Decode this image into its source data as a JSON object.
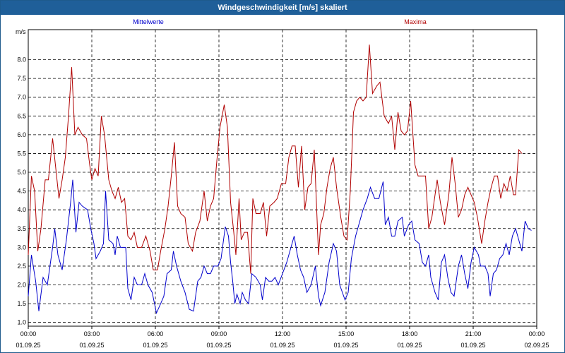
{
  "window": {
    "title": "Windgeschwindigkeit [m/s] skaliert"
  },
  "chart_data": {
    "type": "line",
    "title": "Windgeschwindigkeit [m/s] skaliert",
    "ylabel": "m/s",
    "xlabel": "",
    "ylim": [
      0.9,
      8.8
    ],
    "xlim": [
      0,
      24
    ],
    "grid": true,
    "y_ticks": [
      "1.0",
      "1.5",
      "2.0",
      "2.5",
      "3.0",
      "3.5",
      "4.0",
      "4.5",
      "5.0",
      "5.5",
      "6.0",
      "6.5",
      "7.0",
      "7.5",
      "8.0"
    ],
    "x_ticks": [
      {
        "time": "00:00",
        "date": "01.09.25"
      },
      {
        "time": "03:00",
        "date": "01.09.25"
      },
      {
        "time": "06:00",
        "date": "01.09.25"
      },
      {
        "time": "09:00",
        "date": "01.09.25"
      },
      {
        "time": "12:00",
        "date": "01.09.25"
      },
      {
        "time": "15:00",
        "date": "01.09.25"
      },
      {
        "time": "18:00",
        "date": "01.09.25"
      },
      {
        "time": "21:00",
        "date": "01.09.25"
      },
      {
        "time": "00:00",
        "date": "02.09.25"
      }
    ],
    "series": [
      {
        "name": "Mittelwerte",
        "color": "#0000cc",
        "points": [
          [
            0.0,
            1.7
          ],
          [
            0.15,
            2.8
          ],
          [
            0.35,
            2.1
          ],
          [
            0.5,
            1.3
          ],
          [
            0.7,
            2.2
          ],
          [
            0.9,
            2.0
          ],
          [
            1.15,
            3.0
          ],
          [
            1.25,
            3.5
          ],
          [
            1.4,
            2.8
          ],
          [
            1.6,
            2.4
          ],
          [
            1.8,
            3.2
          ],
          [
            2.0,
            4.2
          ],
          [
            2.1,
            4.8
          ],
          [
            2.25,
            3.4
          ],
          [
            2.4,
            4.2
          ],
          [
            2.55,
            4.1
          ],
          [
            2.8,
            4.0
          ],
          [
            2.95,
            3.5
          ],
          [
            3.1,
            3.1
          ],
          [
            3.2,
            2.7
          ],
          [
            3.4,
            2.9
          ],
          [
            3.55,
            3.1
          ],
          [
            3.65,
            4.5
          ],
          [
            3.8,
            3.2
          ],
          [
            4.0,
            3.1
          ],
          [
            4.1,
            2.8
          ],
          [
            4.2,
            3.3
          ],
          [
            4.35,
            3.0
          ],
          [
            4.6,
            3.0
          ],
          [
            4.7,
            1.9
          ],
          [
            4.85,
            1.6
          ],
          [
            5.0,
            2.2
          ],
          [
            5.15,
            2.0
          ],
          [
            5.35,
            2.0
          ],
          [
            5.5,
            2.3
          ],
          [
            5.65,
            2.0
          ],
          [
            5.85,
            1.8
          ],
          [
            6.05,
            1.25
          ],
          [
            6.25,
            1.5
          ],
          [
            6.4,
            1.7
          ],
          [
            6.55,
            2.3
          ],
          [
            6.75,
            2.4
          ],
          [
            6.85,
            2.9
          ],
          [
            7.0,
            2.5
          ],
          [
            7.2,
            2.1
          ],
          [
            7.4,
            1.8
          ],
          [
            7.6,
            1.35
          ],
          [
            7.8,
            1.3
          ],
          [
            8.0,
            2.1
          ],
          [
            8.15,
            2.2
          ],
          [
            8.3,
            2.5
          ],
          [
            8.45,
            2.3
          ],
          [
            8.6,
            2.3
          ],
          [
            8.75,
            2.5
          ],
          [
            8.95,
            2.5
          ],
          [
            9.1,
            2.7
          ],
          [
            9.3,
            3.55
          ],
          [
            9.45,
            3.3
          ],
          [
            9.55,
            2.6
          ],
          [
            9.65,
            2.1
          ],
          [
            9.75,
            1.5
          ],
          [
            9.85,
            1.75
          ],
          [
            10.0,
            1.5
          ],
          [
            10.1,
            1.8
          ],
          [
            10.25,
            1.6
          ],
          [
            10.4,
            1.5
          ],
          [
            10.55,
            2.3
          ],
          [
            10.75,
            2.2
          ],
          [
            10.95,
            2.0
          ],
          [
            11.05,
            1.6
          ],
          [
            11.2,
            2.2
          ],
          [
            11.35,
            2.1
          ],
          [
            11.5,
            2.1
          ],
          [
            11.65,
            2.2
          ],
          [
            11.8,
            2.0
          ],
          [
            12.0,
            2.3
          ],
          [
            12.2,
            2.6
          ],
          [
            12.4,
            3.0
          ],
          [
            12.55,
            3.3
          ],
          [
            12.7,
            2.8
          ],
          [
            12.85,
            2.4
          ],
          [
            13.0,
            2.2
          ],
          [
            13.15,
            1.8
          ],
          [
            13.35,
            2.0
          ],
          [
            13.55,
            2.5
          ],
          [
            13.7,
            1.7
          ],
          [
            13.8,
            1.45
          ],
          [
            14.0,
            1.8
          ],
          [
            14.2,
            2.6
          ],
          [
            14.4,
            3.1
          ],
          [
            14.55,
            2.9
          ],
          [
            14.7,
            2.0
          ],
          [
            14.95,
            1.6
          ],
          [
            15.1,
            1.8
          ],
          [
            15.25,
            2.7
          ],
          [
            15.45,
            3.3
          ],
          [
            15.6,
            3.6
          ],
          [
            15.8,
            4.0
          ],
          [
            16.0,
            4.3
          ],
          [
            16.15,
            4.6
          ],
          [
            16.35,
            4.3
          ],
          [
            16.55,
            4.3
          ],
          [
            16.75,
            4.75
          ],
          [
            16.85,
            3.6
          ],
          [
            17.0,
            3.8
          ],
          [
            17.15,
            3.3
          ],
          [
            17.3,
            3.3
          ],
          [
            17.45,
            3.7
          ],
          [
            17.65,
            3.8
          ],
          [
            17.75,
            3.3
          ],
          [
            17.95,
            3.6
          ],
          [
            18.1,
            3.7
          ],
          [
            18.25,
            3.2
          ],
          [
            18.45,
            3.1
          ],
          [
            18.6,
            2.6
          ],
          [
            18.75,
            2.5
          ],
          [
            18.9,
            2.8
          ],
          [
            19.0,
            2.2
          ],
          [
            19.2,
            1.8
          ],
          [
            19.35,
            1.6
          ],
          [
            19.5,
            2.6
          ],
          [
            19.65,
            2.8
          ],
          [
            19.8,
            2.2
          ],
          [
            19.95,
            1.8
          ],
          [
            20.1,
            1.7
          ],
          [
            20.3,
            2.5
          ],
          [
            20.45,
            2.8
          ],
          [
            20.6,
            2.3
          ],
          [
            20.75,
            1.9
          ],
          [
            20.9,
            2.6
          ],
          [
            21.05,
            3.0
          ],
          [
            21.25,
            2.8
          ],
          [
            21.35,
            2.5
          ],
          [
            21.55,
            2.5
          ],
          [
            21.7,
            2.3
          ],
          [
            21.8,
            1.7
          ],
          [
            21.95,
            2.3
          ],
          [
            22.1,
            2.4
          ],
          [
            22.25,
            2.7
          ],
          [
            22.4,
            2.8
          ],
          [
            22.55,
            3.1
          ],
          [
            22.7,
            2.8
          ],
          [
            22.85,
            3.3
          ],
          [
            23.0,
            3.5
          ],
          [
            23.15,
            3.2
          ],
          [
            23.3,
            2.9
          ],
          [
            23.45,
            3.7
          ],
          [
            23.6,
            3.5
          ],
          [
            23.75,
            3.45
          ]
        ]
      },
      {
        "name": "Maxima",
        "color": "#b00000",
        "points": [
          [
            0.0,
            2.8
          ],
          [
            0.15,
            4.9
          ],
          [
            0.3,
            4.5
          ],
          [
            0.45,
            2.9
          ],
          [
            0.6,
            3.5
          ],
          [
            0.8,
            4.8
          ],
          [
            0.95,
            4.8
          ],
          [
            1.15,
            5.9
          ],
          [
            1.3,
            5.1
          ],
          [
            1.45,
            4.3
          ],
          [
            1.6,
            4.8
          ],
          [
            1.75,
            5.4
          ],
          [
            1.9,
            6.5
          ],
          [
            2.05,
            7.8
          ],
          [
            2.2,
            6.0
          ],
          [
            2.35,
            6.2
          ],
          [
            2.55,
            6.0
          ],
          [
            2.75,
            5.9
          ],
          [
            2.9,
            5.2
          ],
          [
            3.0,
            4.8
          ],
          [
            3.15,
            5.1
          ],
          [
            3.3,
            4.9
          ],
          [
            3.45,
            6.5
          ],
          [
            3.6,
            6.0
          ],
          [
            3.8,
            4.8
          ],
          [
            3.95,
            4.5
          ],
          [
            4.1,
            4.3
          ],
          [
            4.25,
            4.6
          ],
          [
            4.4,
            4.2
          ],
          [
            4.55,
            4.3
          ],
          [
            4.7,
            3.3
          ],
          [
            4.85,
            3.2
          ],
          [
            5.0,
            3.4
          ],
          [
            5.15,
            3.0
          ],
          [
            5.35,
            3.0
          ],
          [
            5.55,
            3.3
          ],
          [
            5.75,
            2.9
          ],
          [
            5.9,
            2.4
          ],
          [
            6.1,
            2.4
          ],
          [
            6.25,
            2.9
          ],
          [
            6.45,
            3.5
          ],
          [
            6.6,
            4.1
          ],
          [
            6.75,
            4.9
          ],
          [
            6.9,
            5.8
          ],
          [
            7.05,
            4.1
          ],
          [
            7.2,
            3.9
          ],
          [
            7.4,
            3.8
          ],
          [
            7.55,
            3.1
          ],
          [
            7.75,
            2.9
          ],
          [
            7.9,
            3.4
          ],
          [
            8.1,
            3.7
          ],
          [
            8.3,
            4.5
          ],
          [
            8.45,
            3.7
          ],
          [
            8.6,
            4.1
          ],
          [
            8.75,
            4.3
          ],
          [
            8.9,
            5.3
          ],
          [
            9.05,
            6.2
          ],
          [
            9.25,
            6.8
          ],
          [
            9.4,
            6.2
          ],
          [
            9.55,
            4.2
          ],
          [
            9.7,
            3.4
          ],
          [
            9.8,
            2.8
          ],
          [
            9.95,
            4.3
          ],
          [
            10.05,
            3.2
          ],
          [
            10.2,
            3.4
          ],
          [
            10.35,
            3.4
          ],
          [
            10.5,
            2.3
          ],
          [
            10.6,
            4.3
          ],
          [
            10.75,
            3.9
          ],
          [
            10.95,
            3.9
          ],
          [
            11.1,
            4.2
          ],
          [
            11.25,
            3.3
          ],
          [
            11.4,
            4.1
          ],
          [
            11.6,
            4.2
          ],
          [
            11.75,
            4.3
          ],
          [
            11.95,
            4.7
          ],
          [
            12.15,
            4.7
          ],
          [
            12.3,
            5.4
          ],
          [
            12.45,
            5.7
          ],
          [
            12.6,
            5.7
          ],
          [
            12.75,
            4.6
          ],
          [
            12.9,
            5.7
          ],
          [
            13.05,
            4.0
          ],
          [
            13.2,
            4.6
          ],
          [
            13.35,
            4.7
          ],
          [
            13.5,
            5.6
          ],
          [
            13.7,
            2.8
          ],
          [
            13.8,
            3.6
          ],
          [
            13.95,
            3.9
          ],
          [
            14.1,
            4.6
          ],
          [
            14.25,
            5.1
          ],
          [
            14.4,
            5.4
          ],
          [
            14.55,
            4.6
          ],
          [
            14.75,
            3.8
          ],
          [
            14.9,
            3.3
          ],
          [
            15.05,
            3.2
          ],
          [
            15.2,
            4.5
          ],
          [
            15.35,
            6.6
          ],
          [
            15.5,
            6.9
          ],
          [
            15.65,
            7.0
          ],
          [
            15.8,
            6.9
          ],
          [
            15.95,
            7.0
          ],
          [
            16.1,
            8.4
          ],
          [
            16.25,
            7.1
          ],
          [
            16.45,
            7.3
          ],
          [
            16.6,
            7.4
          ],
          [
            16.8,
            6.5
          ],
          [
            17.0,
            6.3
          ],
          [
            17.15,
            6.5
          ],
          [
            17.3,
            5.6
          ],
          [
            17.45,
            6.6
          ],
          [
            17.6,
            6.1
          ],
          [
            17.75,
            6.0
          ],
          [
            17.9,
            6.1
          ],
          [
            18.05,
            6.9
          ],
          [
            18.25,
            5.2
          ],
          [
            18.4,
            4.9
          ],
          [
            18.6,
            4.9
          ],
          [
            18.75,
            4.9
          ],
          [
            18.9,
            3.5
          ],
          [
            19.05,
            3.8
          ],
          [
            19.3,
            4.8
          ],
          [
            19.45,
            4.2
          ],
          [
            19.65,
            3.6
          ],
          [
            19.85,
            4.4
          ],
          [
            20.0,
            5.4
          ],
          [
            20.15,
            4.7
          ],
          [
            20.3,
            3.8
          ],
          [
            20.45,
            4.0
          ],
          [
            20.6,
            4.4
          ],
          [
            20.75,
            4.6
          ],
          [
            20.9,
            4.4
          ],
          [
            21.05,
            4.2
          ],
          [
            21.2,
            3.8
          ],
          [
            21.4,
            3.1
          ],
          [
            21.55,
            3.7
          ],
          [
            21.7,
            4.2
          ],
          [
            21.85,
            4.6
          ],
          [
            22.0,
            4.9
          ],
          [
            22.15,
            4.9
          ],
          [
            22.3,
            4.3
          ],
          [
            22.45,
            4.7
          ],
          [
            22.6,
            4.5
          ],
          [
            22.75,
            4.9
          ],
          [
            22.9,
            4.4
          ],
          [
            23.0,
            4.4
          ],
          [
            23.15,
            5.6
          ],
          [
            23.3,
            5.5
          ]
        ]
      }
    ]
  }
}
